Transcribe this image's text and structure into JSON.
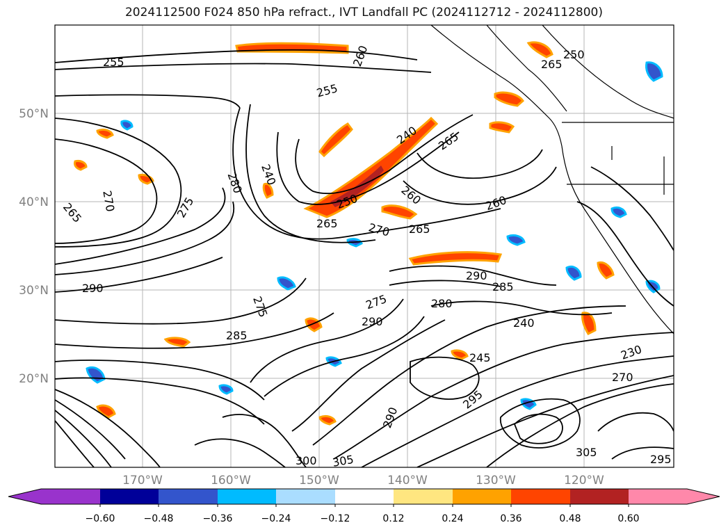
{
  "title": "2024112500 F024 850 hPa refract., IVT Landfall PC (2024112712 - 2024112800)",
  "map": {
    "lat_labels": [
      "50°N",
      "40°N",
      "30°N",
      "20°N"
    ],
    "lon_labels": [
      "170°W",
      "160°W",
      "150°W",
      "140°W",
      "130°W",
      "120°W"
    ],
    "contour_labels": [
      "255",
      "260",
      "255",
      "250",
      "265",
      "240",
      "265",
      "280",
      "240",
      "250",
      "265",
      "260",
      "260",
      "270",
      "265",
      "275",
      "265",
      "270",
      "285",
      "290",
      "280",
      "275",
      "290",
      "285",
      "275",
      "290",
      "295",
      "300",
      "305",
      "305",
      "295",
      "230",
      "240",
      "245",
      "270",
      "290"
    ]
  },
  "colorbar": {
    "ticks": [
      "−0.60",
      "−0.48",
      "−0.36",
      "−0.24",
      "−0.12",
      "0.12",
      "0.24",
      "0.36",
      "0.48",
      "0.60"
    ],
    "colors": [
      "#9933cc",
      "#000099",
      "#3355cc",
      "#00bbff",
      "#aaddff",
      "#ffffff",
      "#ffe680",
      "#ffa200",
      "#ff4400",
      "#b22222",
      "#ff88aa"
    ],
    "low_extend_color": "#9933cc",
    "high_extend_color": "#ff88aa"
  }
}
